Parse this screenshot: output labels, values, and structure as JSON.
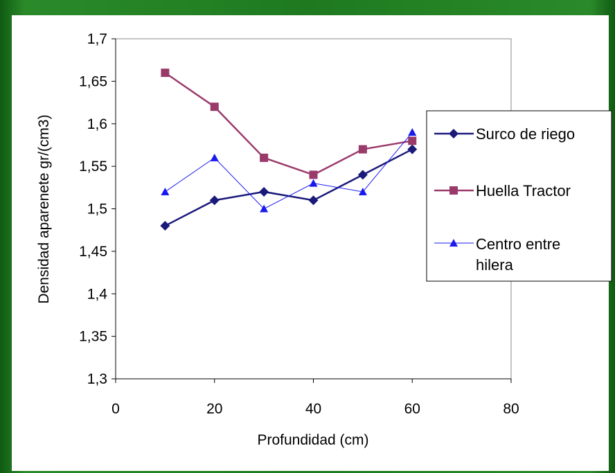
{
  "chart_data": {
    "type": "line",
    "xlabel": "Profundidad (cm)",
    "ylabel": "Densidad aparenete gr/(cm3)",
    "xlim": [
      0,
      80
    ],
    "ylim": [
      1.3,
      1.7
    ],
    "x_ticks": [
      "0",
      "20",
      "40",
      "60",
      "80"
    ],
    "y_ticks": [
      "1,3",
      "1,35",
      "1,4",
      "1,45",
      "1,5",
      "1,55",
      "1,6",
      "1,65",
      "1,7"
    ],
    "grid": false,
    "legend_position": "right",
    "series": [
      {
        "name": "Surco de riego",
        "color": "#1a1a7a",
        "marker": "diamond",
        "x": [
          10,
          20,
          30,
          40,
          50,
          60
        ],
        "y": [
          1.48,
          1.51,
          1.52,
          1.51,
          1.54,
          1.57
        ]
      },
      {
        "name": "Huella Tractor",
        "color": "#9a3a6a",
        "marker": "square",
        "x": [
          10,
          20,
          30,
          40,
          50,
          60
        ],
        "y": [
          1.66,
          1.62,
          1.56,
          1.54,
          1.57,
          1.58
        ]
      },
      {
        "name": "Centro entre hilera",
        "color": "#1a1aee",
        "marker": "triangle",
        "x": [
          10,
          20,
          30,
          40,
          50,
          60
        ],
        "y": [
          1.52,
          1.56,
          1.5,
          1.53,
          1.52,
          1.59
        ]
      }
    ]
  },
  "legend": {
    "line1": "Surco de riego",
    "line2": "Huella Tractor",
    "line3a": "Centro entre",
    "line3b": "hilera"
  }
}
